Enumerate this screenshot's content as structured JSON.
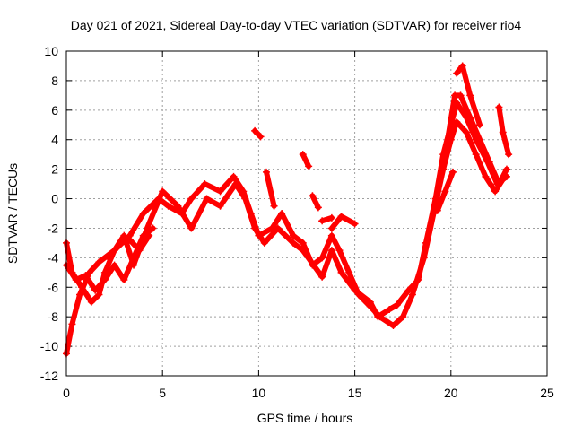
{
  "chart_data": {
    "type": "scatter",
    "title": "Day 021 of 2021, Sidereal Day-to-day VTEC variation (SDTVAR) for receiver rio4",
    "xlabel": "GPS time / hours",
    "ylabel": "SDTVAR / TECUs",
    "xlim": [
      0,
      25
    ],
    "ylim": [
      -12,
      10
    ],
    "xticks": [
      0,
      5,
      10,
      15,
      20,
      25
    ],
    "yticks": [
      -12,
      -10,
      -8,
      -6,
      -4,
      -2,
      0,
      2,
      4,
      6,
      8,
      10
    ],
    "grid": true,
    "marker": "plus",
    "color": "#ff0000",
    "series": [
      {
        "name": "trace-a",
        "points": [
          [
            0,
            -10.5
          ],
          [
            0.3,
            -8.5
          ],
          [
            0.7,
            -6.5
          ],
          [
            1.2,
            -5
          ],
          [
            1.7,
            -4.3
          ],
          [
            2.5,
            -3.5
          ],
          [
            3.3,
            -2.5
          ],
          [
            4,
            -1
          ],
          [
            4.8,
            0
          ],
          [
            5.3,
            -0.5
          ],
          [
            6,
            -1
          ],
          [
            6.5,
            0
          ],
          [
            7.2,
            1
          ],
          [
            8,
            0.5
          ],
          [
            8.7,
            1.5
          ],
          [
            9.2,
            0.5
          ],
          [
            9.6,
            -1
          ],
          [
            10,
            -2.5
          ],
          [
            10.7,
            -2
          ],
          [
            11.2,
            -1
          ],
          [
            11.8,
            -2.5
          ],
          [
            12.3,
            -3
          ],
          [
            12.8,
            -4.5
          ],
          [
            13.3,
            -4
          ],
          [
            13.8,
            -2.5
          ],
          [
            14.2,
            -3.5
          ],
          [
            14.7,
            -5
          ],
          [
            15.2,
            -6.5
          ],
          [
            15.8,
            -7.3
          ],
          [
            16.3,
            -8
          ],
          [
            17,
            -8.6
          ],
          [
            17.5,
            -8
          ],
          [
            18,
            -6.5
          ],
          [
            18.6,
            -4
          ],
          [
            19.1,
            -1
          ],
          [
            19.6,
            2
          ],
          [
            20,
            4
          ],
          [
            20.3,
            5.2
          ],
          [
            20.8,
            4.5
          ],
          [
            21.3,
            3
          ],
          [
            21.8,
            1.5
          ],
          [
            22.3,
            0.5
          ],
          [
            22.8,
            1.5
          ]
        ]
      },
      {
        "name": "trace-b",
        "points": [
          [
            0,
            -3
          ],
          [
            0.3,
            -5
          ],
          [
            0.8,
            -6
          ],
          [
            1.3,
            -7
          ],
          [
            1.7,
            -6.5
          ],
          [
            2,
            -5
          ],
          [
            2.5,
            -3.5
          ],
          [
            3,
            -2.5
          ],
          [
            3.5,
            -4.5
          ],
          [
            4.2,
            -2
          ],
          [
            5,
            0.5
          ],
          [
            5.8,
            -0.5
          ],
          [
            6.5,
            -2
          ],
          [
            7.3,
            0
          ],
          [
            8,
            -0.5
          ],
          [
            8.8,
            1
          ],
          [
            9.3,
            0
          ],
          [
            9.8,
            -2
          ],
          [
            10.3,
            -3
          ],
          [
            11,
            -2
          ],
          [
            11.8,
            -3
          ],
          [
            12.3,
            -3.5
          ],
          [
            13.3,
            -5.3
          ],
          [
            13.8,
            -3.5
          ],
          [
            14.3,
            -5
          ],
          [
            15,
            -6.2
          ],
          [
            15.8,
            -7
          ],
          [
            16.2,
            -8
          ],
          [
            16.8,
            -7.5
          ],
          [
            17.2,
            -7.2
          ],
          [
            17.8,
            -6.2
          ],
          [
            18.3,
            -5.5
          ],
          [
            18.7,
            -3
          ],
          [
            19.2,
            0
          ],
          [
            19.6,
            3
          ],
          [
            20,
            5
          ],
          [
            20.3,
            6.5
          ],
          [
            20.8,
            5.5
          ],
          [
            21.3,
            4
          ],
          [
            21.9,
            2.5
          ],
          [
            22.4,
            1
          ],
          [
            22.9,
            1.5
          ]
        ]
      },
      {
        "name": "trace-c",
        "points": [
          [
            19.2,
            -0.5
          ],
          [
            19.7,
            3
          ],
          [
            20.2,
            7
          ],
          [
            20.5,
            7
          ],
          [
            21,
            5.5
          ],
          [
            21.5,
            4
          ],
          [
            22,
            2.5
          ],
          [
            22.5,
            1
          ],
          [
            22.9,
            2
          ]
        ]
      },
      {
        "name": "trace-d",
        "points": [
          [
            20.3,
            8.5
          ],
          [
            20.6,
            9
          ],
          [
            21,
            7
          ],
          [
            21.5,
            5
          ]
        ]
      },
      {
        "name": "trace-e",
        "points": [
          [
            0,
            -4.5
          ],
          [
            0.5,
            -5.5
          ],
          [
            1,
            -5.2
          ],
          [
            1.5,
            -6.2
          ],
          [
            2,
            -5.5
          ],
          [
            2.5,
            -4.5
          ],
          [
            3,
            -5.5
          ],
          [
            3.5,
            -4
          ],
          [
            4,
            -2.5
          ],
          [
            4.5,
            -2
          ]
        ]
      },
      {
        "name": "trace-f",
        "points": [
          [
            2.2,
            -4
          ],
          [
            2.8,
            -3
          ],
          [
            3.3,
            -2.8
          ],
          [
            3.8,
            -3.5
          ],
          [
            4.3,
            -2.5
          ]
        ]
      },
      {
        "name": "fragment-1",
        "points": [
          [
            9.8,
            4.6
          ],
          [
            10.1,
            4.2
          ]
        ]
      },
      {
        "name": "fragment-2",
        "points": [
          [
            10.4,
            1.8
          ],
          [
            10.8,
            -0.5
          ]
        ]
      },
      {
        "name": "fragment-3",
        "points": [
          [
            12.3,
            3
          ],
          [
            12.6,
            2.2
          ]
        ]
      },
      {
        "name": "fragment-4",
        "points": [
          [
            12.8,
            0.2
          ],
          [
            13.1,
            -0.6
          ]
        ]
      },
      {
        "name": "fragment-5",
        "points": [
          [
            13.3,
            -1.5
          ],
          [
            13.8,
            -1.3
          ]
        ]
      },
      {
        "name": "fragment-6",
        "points": [
          [
            13.8,
            -2
          ],
          [
            14.3,
            -1.2
          ],
          [
            15,
            -1.7
          ]
        ]
      },
      {
        "name": "fragment-7",
        "points": [
          [
            22.5,
            6.2
          ],
          [
            22.7,
            4.5
          ],
          [
            23,
            3
          ]
        ]
      },
      {
        "name": "fragment-8",
        "points": [
          [
            19.3,
            -0.8
          ],
          [
            19.7,
            0.5
          ],
          [
            20.1,
            1.8
          ]
        ]
      }
    ]
  }
}
